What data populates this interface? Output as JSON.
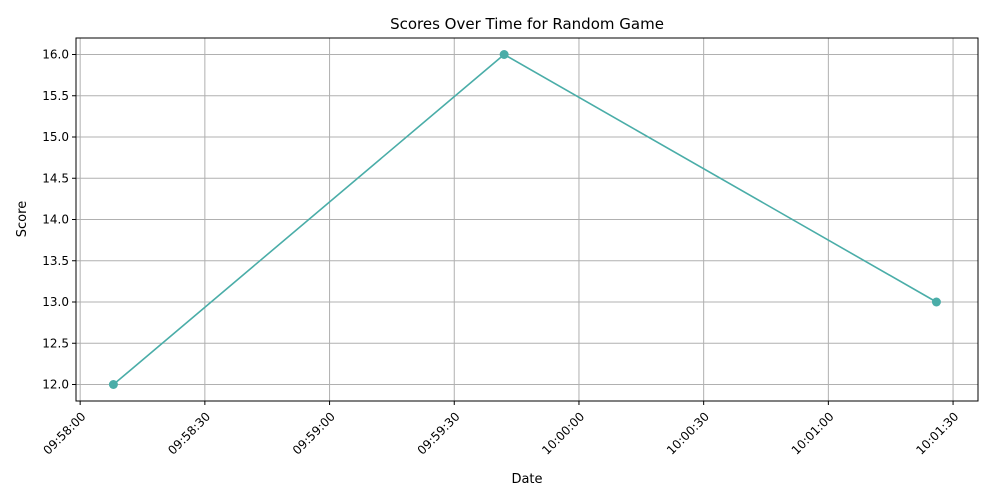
{
  "chart_data": {
    "type": "line",
    "title": "Scores Over Time for Random Game",
    "xlabel": "Date",
    "ylabel": "Score",
    "x_ticks": [
      "09:58:00",
      "09:58:30",
      "09:59:00",
      "09:59:30",
      "10:00:00",
      "10:00:30",
      "10:01:00",
      "10:01:30"
    ],
    "y_ticks": [
      "12.0",
      "12.5",
      "13.0",
      "13.5",
      "14.0",
      "14.5",
      "15.0",
      "15.5",
      "16.0"
    ],
    "xlim": [
      "09:57:59",
      "10:01:36"
    ],
    "ylim": [
      11.8,
      16.2
    ],
    "grid": true,
    "series": [
      {
        "color": "#4AADA8",
        "points": [
          {
            "x": "09:58:08",
            "y": 12
          },
          {
            "x": "09:59:42",
            "y": 16
          },
          {
            "x": "10:01:26",
            "y": 13
          }
        ]
      }
    ]
  }
}
